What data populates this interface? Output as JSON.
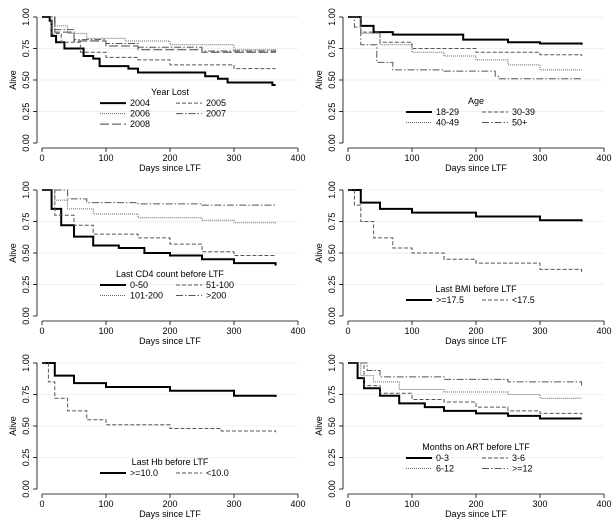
{
  "chart_data": [
    {
      "type": "line",
      "title": "",
      "xlabel": "Days since LTF",
      "ylabel": "Alive",
      "xlim": [
        0,
        400
      ],
      "ylim": [
        0,
        1
      ],
      "xticks": [
        "0",
        "100",
        "200",
        "300",
        "400"
      ],
      "yticks": [
        "0.00",
        "0.25",
        "0.50",
        "0.75",
        "1.00"
      ],
      "legend_title": "Year Lost",
      "legend_placement": "bottom-center",
      "series": [
        {
          "name": "2004",
          "style": "solid",
          "points": [
            [
              0,
              1
            ],
            [
              8,
              1
            ],
            [
              12,
              0.97
            ],
            [
              15,
              0.85
            ],
            [
              22,
              0.8
            ],
            [
              35,
              0.75
            ],
            [
              65,
              0.69
            ],
            [
              80,
              0.67
            ],
            [
              90,
              0.61
            ],
            [
              135,
              0.59
            ],
            [
              150,
              0.56
            ],
            [
              255,
              0.53
            ],
            [
              275,
              0.51
            ],
            [
              290,
              0.48
            ],
            [
              360,
              0.46
            ],
            [
              365,
              0.46
            ]
          ]
        },
        {
          "name": "2005",
          "style": "dash",
          "points": [
            [
              0,
              1
            ],
            [
              15,
              0.87
            ],
            [
              30,
              0.8
            ],
            [
              60,
              0.72
            ],
            [
              100,
              0.68
            ],
            [
              150,
              0.66
            ],
            [
              200,
              0.62
            ],
            [
              300,
              0.59
            ],
            [
              365,
              0.59
            ]
          ]
        },
        {
          "name": "2006",
          "style": "dot",
          "points": [
            [
              0,
              1
            ],
            [
              20,
              0.93
            ],
            [
              40,
              0.87
            ],
            [
              70,
              0.83
            ],
            [
              130,
              0.81
            ],
            [
              200,
              0.78
            ],
            [
              300,
              0.74
            ],
            [
              365,
              0.73
            ]
          ]
        },
        {
          "name": "2007",
          "style": "dashdot",
          "points": [
            [
              0,
              1
            ],
            [
              20,
              0.9
            ],
            [
              50,
              0.82
            ],
            [
              100,
              0.79
            ],
            [
              150,
              0.76
            ],
            [
              250,
              0.73
            ],
            [
              365,
              0.72
            ]
          ]
        },
        {
          "name": "2008",
          "style": "longdash",
          "points": [
            [
              0,
              1
            ],
            [
              20,
              0.88
            ],
            [
              50,
              0.81
            ],
            [
              100,
              0.77
            ],
            [
              150,
              0.74
            ],
            [
              250,
              0.72
            ],
            [
              365,
              0.72
            ]
          ]
        }
      ]
    },
    {
      "type": "line",
      "title": "",
      "xlabel": "Days since LTF",
      "ylabel": "Alive",
      "xlim": [
        0,
        400
      ],
      "ylim": [
        0,
        1
      ],
      "xticks": [
        "0",
        "100",
        "200",
        "300",
        "400"
      ],
      "yticks": [
        "0.00",
        "0.25",
        "0.50",
        "0.75",
        "1.00"
      ],
      "legend_title": "Age",
      "legend_placement": "bottom-center",
      "series": [
        {
          "name": "18-29",
          "style": "solid",
          "points": [
            [
              0,
              1
            ],
            [
              20,
              0.93
            ],
            [
              40,
              0.88
            ],
            [
              70,
              0.86
            ],
            [
              130,
              0.86
            ],
            [
              180,
              0.82
            ],
            [
              250,
              0.8
            ],
            [
              300,
              0.79
            ],
            [
              365,
              0.78
            ]
          ]
        },
        {
          "name": "30-39",
          "style": "dash",
          "points": [
            [
              0,
              1
            ],
            [
              20,
              0.88
            ],
            [
              50,
              0.8
            ],
            [
              100,
              0.75
            ],
            [
              200,
              0.72
            ],
            [
              300,
              0.7
            ],
            [
              365,
              0.69
            ]
          ]
        },
        {
          "name": "40-49",
          "style": "dot",
          "points": [
            [
              0,
              1
            ],
            [
              20,
              0.87
            ],
            [
              50,
              0.78
            ],
            [
              100,
              0.72
            ],
            [
              150,
              0.69
            ],
            [
              200,
              0.66
            ],
            [
              250,
              0.62
            ],
            [
              300,
              0.58
            ],
            [
              365,
              0.58
            ]
          ]
        },
        {
          "name": "50+",
          "style": "dashdot",
          "points": [
            [
              0,
              1
            ],
            [
              10,
              0.92
            ],
            [
              20,
              0.78
            ],
            [
              45,
              0.64
            ],
            [
              70,
              0.58
            ],
            [
              150,
              0.57
            ],
            [
              230,
              0.53
            ],
            [
              235,
              0.51
            ],
            [
              365,
              0.51
            ]
          ]
        }
      ]
    },
    {
      "type": "line",
      "title": "",
      "xlabel": "Days since LTF",
      "ylabel": "Alive",
      "xlim": [
        0,
        400
      ],
      "ylim": [
        0,
        1
      ],
      "xticks": [
        "0",
        "100",
        "200",
        "300",
        "400"
      ],
      "yticks": [
        "0.00",
        "0.25",
        "0.50",
        "0.75",
        "1.00"
      ],
      "legend_title": "Last CD4 count before LTF",
      "legend_placement": "bottom-center",
      "series": [
        {
          "name": "0-50",
          "style": "solid",
          "points": [
            [
              0,
              1
            ],
            [
              15,
              0.85
            ],
            [
              30,
              0.72
            ],
            [
              50,
              0.63
            ],
            [
              80,
              0.56
            ],
            [
              120,
              0.54
            ],
            [
              160,
              0.5
            ],
            [
              200,
              0.48
            ],
            [
              250,
              0.45
            ],
            [
              300,
              0.42
            ],
            [
              365,
              0.4
            ]
          ]
        },
        {
          "name": "51-100",
          "style": "dash",
          "points": [
            [
              0,
              1
            ],
            [
              20,
              0.8
            ],
            [
              50,
              0.72
            ],
            [
              80,
              0.65
            ],
            [
              150,
              0.62
            ],
            [
              200,
              0.57
            ],
            [
              250,
              0.51
            ],
            [
              300,
              0.48
            ],
            [
              365,
              0.48
            ]
          ]
        },
        {
          "name": "101-200",
          "style": "dot",
          "points": [
            [
              0,
              1
            ],
            [
              20,
              0.92
            ],
            [
              40,
              0.85
            ],
            [
              80,
              0.81
            ],
            [
              150,
              0.78
            ],
            [
              250,
              0.76
            ],
            [
              300,
              0.74
            ],
            [
              365,
              0.73
            ]
          ]
        },
        {
          "name": ">200",
          "style": "dashdot",
          "points": [
            [
              0,
              1
            ],
            [
              40,
              0.93
            ],
            [
              70,
              0.9
            ],
            [
              150,
              0.89
            ],
            [
              250,
              0.88
            ],
            [
              365,
              0.87
            ]
          ]
        }
      ]
    },
    {
      "type": "line",
      "title": "",
      "xlabel": "Days since LTF",
      "ylabel": "Alive",
      "xlim": [
        0,
        400
      ],
      "ylim": [
        0,
        1
      ],
      "xticks": [
        "0",
        "100",
        "200",
        "300",
        "400"
      ],
      "yticks": [
        "0.00",
        "0.25",
        "0.50",
        "0.75",
        "1.00"
      ],
      "legend_title": "Last BMI before LTF",
      "legend_placement": "bottom-center",
      "series": [
        {
          "name": ">=17.5",
          "style": "solid",
          "points": [
            [
              0,
              1
            ],
            [
              20,
              0.9
            ],
            [
              50,
              0.85
            ],
            [
              100,
              0.82
            ],
            [
              200,
              0.79
            ],
            [
              300,
              0.76
            ],
            [
              365,
              0.75
            ]
          ]
        },
        {
          "name": "<17.5",
          "style": "dash",
          "points": [
            [
              0,
              1
            ],
            [
              10,
              0.88
            ],
            [
              20,
              0.75
            ],
            [
              40,
              0.62
            ],
            [
              70,
              0.54
            ],
            [
              100,
              0.5
            ],
            [
              150,
              0.45
            ],
            [
              200,
              0.42
            ],
            [
              300,
              0.37
            ],
            [
              365,
              0.35
            ]
          ]
        }
      ]
    },
    {
      "type": "line",
      "title": "",
      "xlabel": "Days since LTF",
      "ylabel": "Alive",
      "xlim": [
        0,
        400
      ],
      "ylim": [
        0,
        1
      ],
      "xticks": [
        "0",
        "100",
        "200",
        "300",
        "400"
      ],
      "yticks": [
        "0.00",
        "0.25",
        "0.50",
        "0.75",
        "1.00"
      ],
      "legend_title": "Last Hb before LTF",
      "legend_placement": "bottom-center",
      "series": [
        {
          "name": ">=10.0",
          "style": "solid",
          "points": [
            [
              0,
              1
            ],
            [
              20,
              0.9
            ],
            [
              50,
              0.84
            ],
            [
              100,
              0.81
            ],
            [
              200,
              0.78
            ],
            [
              300,
              0.74
            ],
            [
              365,
              0.73
            ]
          ]
        },
        {
          "name": "<10.0",
          "style": "dash",
          "points": [
            [
              0,
              1
            ],
            [
              10,
              0.85
            ],
            [
              20,
              0.72
            ],
            [
              40,
              0.62
            ],
            [
              70,
              0.55
            ],
            [
              100,
              0.51
            ],
            [
              200,
              0.48
            ],
            [
              280,
              0.46
            ],
            [
              365,
              0.45
            ]
          ]
        }
      ]
    },
    {
      "type": "line",
      "title": "",
      "xlabel": "Days since LTF",
      "ylabel": "Alive",
      "xlim": [
        0,
        400
      ],
      "ylim": [
        0,
        1
      ],
      "xticks": [
        "0",
        "100",
        "200",
        "300",
        "400"
      ],
      "yticks": [
        "0.00",
        "0.25",
        "0.50",
        "0.75",
        "1.00"
      ],
      "legend_title": "Months on ART before LTF",
      "legend_placement": "bottom-center",
      "series": [
        {
          "name": "0-3",
          "style": "solid",
          "points": [
            [
              0,
              1
            ],
            [
              15,
              0.88
            ],
            [
              25,
              0.8
            ],
            [
              50,
              0.74
            ],
            [
              80,
              0.68
            ],
            [
              120,
              0.65
            ],
            [
              150,
              0.62
            ],
            [
              200,
              0.6
            ],
            [
              250,
              0.58
            ],
            [
              300,
              0.56
            ],
            [
              365,
              0.56
            ]
          ]
        },
        {
          "name": "3-6",
          "style": "dash",
          "points": [
            [
              0,
              1
            ],
            [
              25,
              0.82
            ],
            [
              50,
              0.76
            ],
            [
              100,
              0.71
            ],
            [
              150,
              0.69
            ],
            [
              200,
              0.65
            ],
            [
              250,
              0.62
            ],
            [
              300,
              0.6
            ],
            [
              365,
              0.59
            ]
          ]
        },
        {
          "name": "6-12",
          "style": "dot",
          "points": [
            [
              0,
              1
            ],
            [
              20,
              0.9
            ],
            [
              40,
              0.85
            ],
            [
              80,
              0.79
            ],
            [
              150,
              0.77
            ],
            [
              250,
              0.75
            ],
            [
              300,
              0.72
            ],
            [
              365,
              0.72
            ]
          ]
        },
        {
          "name": ">=12",
          "style": "dashdot",
          "points": [
            [
              0,
              1
            ],
            [
              30,
              0.94
            ],
            [
              50,
              0.89
            ],
            [
              150,
              0.87
            ],
            [
              250,
              0.85
            ],
            [
              365,
              0.82
            ]
          ]
        }
      ]
    }
  ]
}
